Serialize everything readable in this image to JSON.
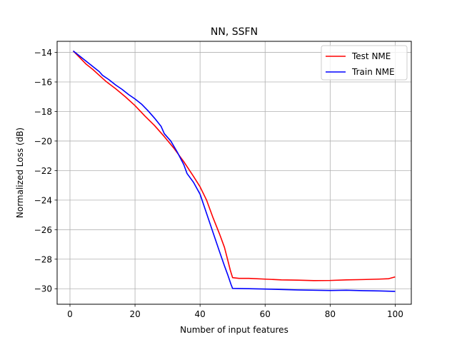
{
  "chart_data": {
    "type": "line",
    "title": "NN, SSFN",
    "xlabel": "Number of input features",
    "ylabel": "Normalized Loss (dB)",
    "xlim": [
      -3.95,
      104.95
    ],
    "ylim": [
      -31.05,
      -13.25
    ],
    "xticks": [
      0,
      20,
      40,
      60,
      80,
      100
    ],
    "yticks": [
      -30,
      -28,
      -26,
      -24,
      -22,
      -20,
      -18,
      -16,
      -14
    ],
    "xtick_labels": [
      "0",
      "20",
      "40",
      "60",
      "80",
      "100"
    ],
    "ytick_labels": [
      "−30",
      "−28",
      "−26",
      "−24",
      "−22",
      "−20",
      "−18",
      "−16",
      "−14"
    ],
    "grid": true,
    "legend_position": "top-right",
    "series": [
      {
        "name": "Test NME",
        "color": "#ff0000",
        "x": [
          1,
          3,
          5,
          7,
          9,
          11,
          14,
          17,
          20,
          23,
          26,
          29,
          32,
          35,
          38,
          40,
          42,
          44,
          46,
          47.5,
          48.5,
          49.3,
          50,
          52,
          55,
          60,
          65,
          70,
          75,
          80,
          85,
          90,
          95,
          98,
          100
        ],
        "y": [
          -13.9,
          -14.35,
          -14.8,
          -15.15,
          -15.55,
          -15.95,
          -16.45,
          -17.0,
          -17.6,
          -18.3,
          -18.95,
          -19.7,
          -20.5,
          -21.4,
          -22.4,
          -23.1,
          -24.0,
          -25.2,
          -26.3,
          -27.2,
          -28.05,
          -28.75,
          -29.25,
          -29.3,
          -29.3,
          -29.35,
          -29.4,
          -29.42,
          -29.45,
          -29.44,
          -29.4,
          -29.38,
          -29.35,
          -29.32,
          -29.2
        ]
      },
      {
        "name": "Train NME",
        "color": "#0000ff",
        "x": [
          1,
          3,
          5,
          7,
          9,
          10,
          12,
          14,
          16,
          18,
          20,
          22,
          24,
          26,
          28,
          29,
          31,
          33,
          35,
          36,
          38,
          40,
          42,
          44,
          46,
          47.5,
          48.5,
          49.5,
          50,
          55,
          60,
          65,
          70,
          75,
          80,
          85,
          90,
          95,
          100
        ],
        "y": [
          -13.9,
          -14.25,
          -14.6,
          -14.95,
          -15.3,
          -15.55,
          -15.85,
          -16.2,
          -16.5,
          -16.85,
          -17.15,
          -17.5,
          -17.95,
          -18.45,
          -19.0,
          -19.5,
          -20.0,
          -20.75,
          -21.6,
          -22.2,
          -22.8,
          -23.6,
          -24.9,
          -26.2,
          -27.5,
          -28.45,
          -29.05,
          -29.7,
          -29.98,
          -30.0,
          -30.02,
          -30.05,
          -30.08,
          -30.1,
          -30.12,
          -30.1,
          -30.13,
          -30.15,
          -30.18
        ]
      }
    ]
  }
}
